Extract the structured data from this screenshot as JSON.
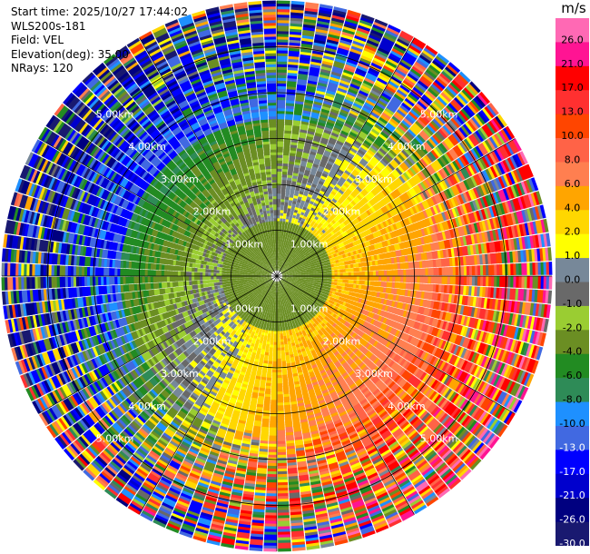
{
  "header": {
    "start_time": "Start time: 2025/10/27 17:44:02",
    "instrument": "WLS200s-181",
    "field": "Field: VEL",
    "elevation": "Elevation(deg): 35.00",
    "nrays": "NRays: 120"
  },
  "chart_data": {
    "type": "heatmap",
    "projection": "polar",
    "n_rays": 120,
    "range_rings_km": [
      1,
      2,
      3,
      4,
      5
    ],
    "range_labels": [
      "1.00km",
      "2.00km",
      "3.00km",
      "4.00km",
      "5.00km"
    ],
    "max_range_km": 6.0,
    "colorbar": {
      "unit": "m/s",
      "ticks": [
        "26.0",
        "21.0",
        "17.0",
        "13.0",
        "10.0",
        "8.0",
        "6.0",
        "4.0",
        "2.0",
        "1.0",
        "0.0",
        "-1.0",
        "-2.0",
        "-4.0",
        "-6.0",
        "-8.0",
        "-10.0",
        "-13.0",
        "-17.0",
        "-21.0",
        "-26.0",
        "-30.0"
      ],
      "bins": [
        {
          "from": 26,
          "to": 30,
          "color": "#ff69b4"
        },
        {
          "from": 21,
          "to": 26,
          "color": "#ff1493"
        },
        {
          "from": 17,
          "to": 21,
          "color": "#ff0000"
        },
        {
          "from": 13,
          "to": 17,
          "color": "#ff3030"
        },
        {
          "from": 10,
          "to": 13,
          "color": "#ff4500"
        },
        {
          "from": 8,
          "to": 10,
          "color": "#ff6347"
        },
        {
          "from": 6,
          "to": 8,
          "color": "#ff7f50"
        },
        {
          "from": 4,
          "to": 6,
          "color": "#ffa500"
        },
        {
          "from": 2,
          "to": 4,
          "color": "#ffd700"
        },
        {
          "from": 1,
          "to": 2,
          "color": "#ffff00"
        },
        {
          "from": 0,
          "to": 1,
          "color": "#778899"
        },
        {
          "from": -1,
          "to": 0,
          "color": "#696969"
        },
        {
          "from": -2,
          "to": -1,
          "color": "#9acd32"
        },
        {
          "from": -4,
          "to": -2,
          "color": "#6b8e23"
        },
        {
          "from": -6,
          "to": -4,
          "color": "#228b22"
        },
        {
          "from": -8,
          "to": -6,
          "color": "#2e8b57"
        },
        {
          "from": -10,
          "to": -8,
          "color": "#1e90ff"
        },
        {
          "from": -13,
          "to": -10,
          "color": "#4169e1"
        },
        {
          "from": -17,
          "to": -13,
          "color": "#0000ff"
        },
        {
          "from": -21,
          "to": -17,
          "color": "#0000cd"
        },
        {
          "from": -26,
          "to": -21,
          "color": "#000080"
        },
        {
          "from": -30,
          "to": -26,
          "color": "#191970"
        }
      ]
    }
  }
}
